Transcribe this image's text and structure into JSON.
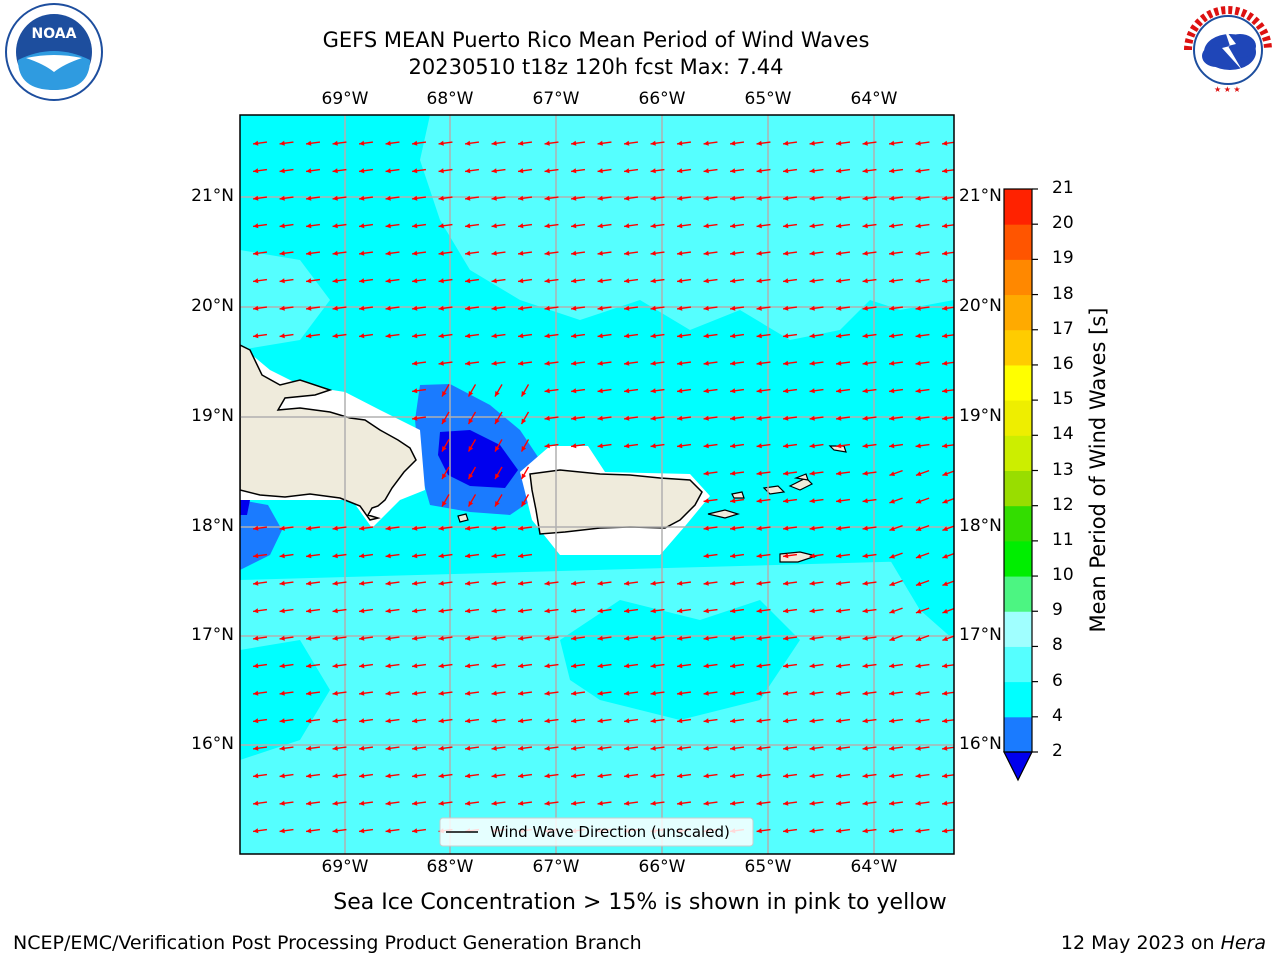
{
  "title": {
    "line1": "GEFS MEAN Puerto Rico Mean Period of Wind Waves",
    "line2": "20230510 t18z 120h fcst   Max: 7.44"
  },
  "logos": {
    "left": "noa-logo",
    "left_text": "NOAA",
    "right": "nws-logo",
    "right_text": "NATIONAL WEATHER SERVICE"
  },
  "map": {
    "lon_ticks": [
      "69°W",
      "68°W",
      "67°W",
      "66°W",
      "65°W",
      "64°W"
    ],
    "lat_ticks": [
      "21°N",
      "20°N",
      "19°N",
      "18°N",
      "17°N",
      "16°N"
    ],
    "legend": "Wind Wave Direction (unscaled)",
    "colors": {
      "ocean_low": "#00ffff",
      "ocean_mid": "#55ffff",
      "land": "#efebdc",
      "blue": "#1a7bff",
      "dark_blue": "#0000ee",
      "arrow": "#ff0000"
    }
  },
  "colorbar": {
    "label": "Mean Period of Wind Waves [s]",
    "ticks": [
      "2",
      "4",
      "6",
      "8",
      "9",
      "10",
      "11",
      "12",
      "13",
      "14",
      "15",
      "16",
      "17",
      "18",
      "19",
      "20",
      "21"
    ],
    "colors": [
      "#0000ee",
      "#1a7bff",
      "#00ffff",
      "#55ffff",
      "#a0ffff",
      "#4cf582",
      "#00ee00",
      "#33dd00",
      "#99dd00",
      "#ccee00",
      "#eeee00",
      "#ffff00",
      "#ffcc00",
      "#ffaa00",
      "#ff8800",
      "#ff5500",
      "#ff2200",
      "#ff0000"
    ]
  },
  "caption": "Sea Ice Concentration > 15% is shown in pink to yellow",
  "footer": {
    "left": "NCEP/EMC/Verification Post Processing Product Generation Branch",
    "right_date": "12 May 2023 on ",
    "right_machine": "Hera"
  }
}
